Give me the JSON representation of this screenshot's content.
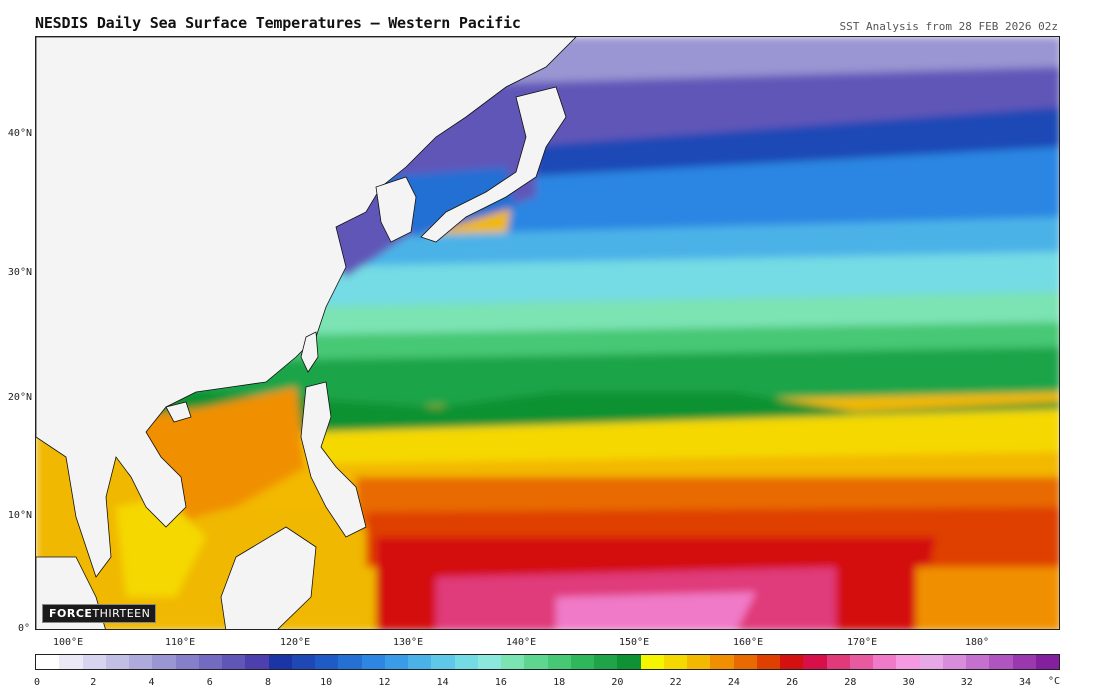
{
  "header": {
    "title": "NESDIS Daily Sea Surface Temperatures — Western Pacific",
    "subtitle": "SST Analysis from 28 FEB 2026 02z"
  },
  "map": {
    "lat_labels": [
      "0°",
      "10°N",
      "20°N",
      "30°N",
      "40°N"
    ],
    "lon_labels": [
      "100°E",
      "110°E",
      "120°E",
      "130°E",
      "140°E",
      "150°E",
      "160°E",
      "170°E",
      "180°"
    ],
    "land_color": "#f4f4f4",
    "coast_color": "#111111"
  },
  "watermark": {
    "brand_bold": "FORCE",
    "brand_light": "THIRTEEN"
  },
  "colorbar": {
    "ticks": [
      "0",
      "2",
      "4",
      "6",
      "8",
      "10",
      "12",
      "14",
      "16",
      "18",
      "20",
      "22",
      "24",
      "26",
      "28",
      "30",
      "32",
      "34"
    ],
    "unit": "°C",
    "colors": [
      "#ffffff",
      "#ebe9f6",
      "#d6d4ee",
      "#c2bfe5",
      "#aeaadc",
      "#9a95d3",
      "#8680ca",
      "#736bc1",
      "#6056b8",
      "#4d40ae",
      "#1c35a6",
      "#1d48b6",
      "#1f5bc6",
      "#2470d4",
      "#2c86e2",
      "#3a9ce6",
      "#4bb2e8",
      "#5fc7e8",
      "#74dbe4",
      "#8ce8dc",
      "#7ce3b3",
      "#5fd690",
      "#46c874",
      "#2fb75c",
      "#1fa44a",
      "#0f9233",
      "#f5f500",
      "#f5d800",
      "#f3b800",
      "#f09000",
      "#e86a00",
      "#df4000",
      "#d41010",
      "#d8104a",
      "#e03a7a",
      "#e85aa0",
      "#f07ac8",
      "#f59ae0",
      "#e6a8e6",
      "#d88cdc",
      "#c570cf",
      "#b054c0",
      "#9a38b0",
      "#84209e"
    ]
  }
}
